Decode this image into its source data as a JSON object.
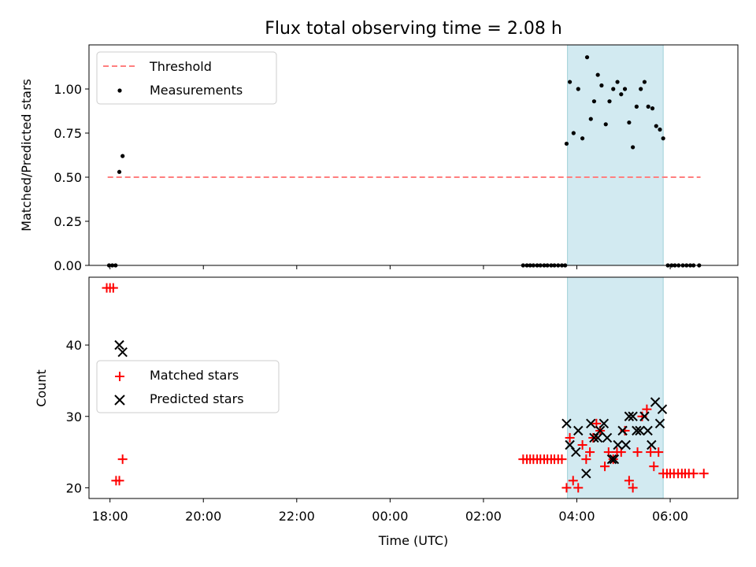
{
  "colors": {
    "threshold": "#ff7f7f",
    "measurement": "#000000",
    "matched": "#ff0000",
    "predicted": "#000000",
    "highlight": "#add8e6"
  },
  "chart_data": [
    {
      "type": "scatter",
      "title": "Flux total observing time = 2.08 h",
      "ylabel": "Matched/Predicted stars",
      "xlabel": "",
      "xlim": [
        17.55,
        31.45
      ],
      "ylim": [
        0,
        1.25
      ],
      "yticks": [
        "0.00",
        "0.25",
        "0.50",
        "0.75",
        "1.00"
      ],
      "grid": false,
      "legend_position": "upper left",
      "highlight_span": [
        27.8,
        29.85
      ],
      "threshold": {
        "name": "Threshold",
        "x": [
          17.95,
          30.65
        ],
        "y": [
          0.5,
          0.5
        ]
      },
      "series": [
        {
          "name": "Measurements",
          "x": [
            17.98,
            18.05,
            18.12,
            18.2,
            18.27,
            26.85,
            26.93,
            27.0,
            27.07,
            27.15,
            27.22,
            27.3,
            27.37,
            27.45,
            27.52,
            27.6,
            27.68,
            27.75,
            27.78,
            27.85,
            27.93,
            28.03,
            28.12,
            28.22,
            28.3,
            28.37,
            28.45,
            28.53,
            28.62,
            28.7,
            28.78,
            28.87,
            28.95,
            29.03,
            29.12,
            29.2,
            29.28,
            29.37,
            29.45,
            29.53,
            29.62,
            29.7,
            29.78,
            29.85,
            29.95,
            30.03,
            30.1,
            30.18,
            30.27,
            30.35,
            30.43,
            30.5,
            30.62
          ],
          "y": [
            0,
            0,
            0,
            0.53,
            0.62,
            0,
            0,
            0,
            0,
            0,
            0,
            0,
            0,
            0,
            0,
            0,
            0,
            0,
            0.69,
            1.04,
            0.75,
            1.0,
            0.72,
            1.18,
            0.83,
            0.93,
            1.08,
            1.02,
            0.8,
            0.93,
            1.0,
            1.04,
            0.97,
            1.0,
            0.81,
            0.67,
            0.9,
            1.0,
            1.04,
            0.9,
            0.89,
            0.79,
            0.77,
            0.72,
            0,
            0,
            0,
            0,
            0,
            0,
            0,
            0,
            0
          ]
        }
      ]
    },
    {
      "type": "scatter",
      "title": "",
      "xlabel": "Time (UTC)",
      "ylabel": "Count",
      "xlim": [
        17.55,
        31.45
      ],
      "ylim": [
        18.5,
        49.5
      ],
      "yticks": [
        "20",
        "30",
        "40"
      ],
      "xticks": [
        "18:00",
        "20:00",
        "22:00",
        "00:00",
        "02:00",
        "04:00",
        "06:00"
      ],
      "grid": false,
      "legend_position": "center left",
      "highlight_span": [
        27.8,
        29.85
      ],
      "series": [
        {
          "name": "Matched stars",
          "x": [
            17.93,
            18.0,
            18.07,
            18.13,
            18.2,
            18.27,
            26.85,
            26.93,
            27.0,
            27.07,
            27.15,
            27.22,
            27.3,
            27.37,
            27.45,
            27.52,
            27.6,
            27.68,
            27.78,
            27.85,
            27.92,
            28.03,
            28.12,
            28.2,
            28.28,
            28.35,
            28.42,
            28.5,
            28.6,
            28.68,
            28.78,
            28.86,
            28.95,
            29.03,
            29.12,
            29.2,
            29.3,
            29.4,
            29.5,
            29.58,
            29.65,
            29.75,
            29.85,
            29.93,
            30.0,
            30.08,
            30.17,
            30.25,
            30.32,
            30.4,
            30.5,
            30.72
          ],
          "y": [
            48,
            48,
            48,
            21,
            21,
            24,
            24,
            24,
            24,
            24,
            24,
            24,
            24,
            24,
            24,
            24,
            24,
            24,
            20,
            27,
            21,
            20,
            26,
            24,
            25,
            27,
            29,
            28,
            23,
            25,
            24,
            25,
            25,
            28,
            21,
            20,
            25,
            30,
            31,
            25,
            23,
            25,
            22,
            22,
            22,
            22,
            22,
            22,
            22,
            22,
            22,
            22
          ]
        },
        {
          "name": "Predicted stars",
          "x": [
            18.2,
            18.27,
            27.78,
            27.85,
            27.98,
            28.03,
            28.2,
            28.3,
            28.37,
            28.45,
            28.5,
            28.58,
            28.65,
            28.75,
            28.8,
            28.88,
            28.98,
            29.05,
            29.12,
            29.2,
            29.28,
            29.35,
            29.45,
            29.52,
            29.6,
            29.68,
            29.78,
            29.83
          ],
          "y": [
            40,
            39,
            29,
            26,
            25,
            28,
            22,
            29,
            27,
            27,
            28,
            29,
            27,
            24,
            24,
            26,
            28,
            26,
            30,
            30,
            28,
            28,
            30,
            28,
            26,
            32,
            29,
            31
          ]
        }
      ]
    }
  ]
}
